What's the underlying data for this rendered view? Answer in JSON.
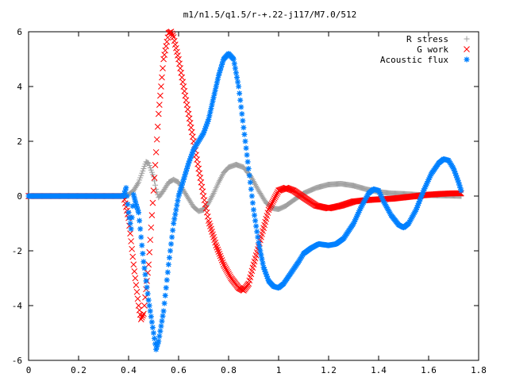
{
  "chart_data": {
    "type": "scatter",
    "title": "m1/n1.5/q1.5/r-+.22-j117/M7.0/512",
    "xlabel": "",
    "ylabel": "",
    "xlim": [
      0,
      1.8
    ],
    "ylim": [
      -6,
      6
    ],
    "x_ticks": [
      "0",
      "0.2",
      "0.4",
      "0.6",
      "0.8",
      "1",
      "1.2",
      "1.4",
      "1.6",
      "1.8"
    ],
    "y_ticks": [
      "-6",
      "-4",
      "-2",
      "0",
      "2",
      "4",
      "6"
    ],
    "grid": false,
    "legend_position": "top-right",
    "series": [
      {
        "name": "R stress",
        "marker": "+",
        "color": "#a0a0a0",
        "points": [
          [
            0,
            0
          ],
          [
            0.38,
            0
          ],
          [
            0.4,
            0.05
          ],
          [
            0.42,
            0.2
          ],
          [
            0.44,
            0.5
          ],
          [
            0.46,
            1.0
          ],
          [
            0.47,
            1.25
          ],
          [
            0.48,
            1.2
          ],
          [
            0.5,
            0.7
          ],
          [
            0.51,
            0.25
          ],
          [
            0.52,
            -0.05
          ],
          [
            0.54,
            0.2
          ],
          [
            0.56,
            0.5
          ],
          [
            0.58,
            0.6
          ],
          [
            0.6,
            0.5
          ],
          [
            0.62,
            0.2
          ],
          [
            0.64,
            -0.1
          ],
          [
            0.66,
            -0.4
          ],
          [
            0.68,
            -0.55
          ],
          [
            0.7,
            -0.5
          ],
          [
            0.72,
            -0.25
          ],
          [
            0.74,
            0.1
          ],
          [
            0.76,
            0.5
          ],
          [
            0.78,
            0.85
          ],
          [
            0.8,
            1.05
          ],
          [
            0.83,
            1.15
          ],
          [
            0.86,
            1.05
          ],
          [
            0.89,
            0.7
          ],
          [
            0.92,
            0.2
          ],
          [
            0.95,
            -0.25
          ],
          [
            0.98,
            -0.45
          ],
          [
            1.0,
            -0.48
          ],
          [
            1.03,
            -0.35
          ],
          [
            1.06,
            -0.15
          ],
          [
            1.1,
            0.1
          ],
          [
            1.15,
            0.3
          ],
          [
            1.2,
            0.42
          ],
          [
            1.25,
            0.45
          ],
          [
            1.3,
            0.38
          ],
          [
            1.35,
            0.25
          ],
          [
            1.4,
            0.15
          ],
          [
            1.45,
            0.1
          ],
          [
            1.5,
            0.08
          ],
          [
            1.55,
            0.05
          ],
          [
            1.6,
            0.03
          ],
          [
            1.65,
            0.02
          ],
          [
            1.7,
            0.01
          ],
          [
            1.73,
            0.0
          ]
        ]
      },
      {
        "name": "G work",
        "marker": "x",
        "color": "#ff0000",
        "points": [
          [
            0,
            0
          ],
          [
            0.38,
            0
          ],
          [
            0.4,
            -0.8
          ],
          [
            0.42,
            -2.5
          ],
          [
            0.44,
            -4.0
          ],
          [
            0.45,
            -4.5
          ],
          [
            0.46,
            -4.3
          ],
          [
            0.48,
            -2.5
          ],
          [
            0.5,
            0.2
          ],
          [
            0.52,
            3.0
          ],
          [
            0.54,
            5.0
          ],
          [
            0.56,
            5.95
          ],
          [
            0.57,
            6.0
          ],
          [
            0.58,
            5.8
          ],
          [
            0.6,
            5.0
          ],
          [
            0.62,
            4.0
          ],
          [
            0.64,
            3.0
          ],
          [
            0.66,
            2.0
          ],
          [
            0.68,
            1.0
          ],
          [
            0.7,
            0.0
          ],
          [
            0.72,
            -0.9
          ],
          [
            0.75,
            -1.8
          ],
          [
            0.78,
            -2.5
          ],
          [
            0.81,
            -3.0
          ],
          [
            0.84,
            -3.35
          ],
          [
            0.86,
            -3.45
          ],
          [
            0.88,
            -3.2
          ],
          [
            0.9,
            -2.5
          ],
          [
            0.93,
            -1.5
          ],
          [
            0.96,
            -0.5
          ],
          [
            1.0,
            0.2
          ],
          [
            1.03,
            0.3
          ],
          [
            1.06,
            0.2
          ],
          [
            1.1,
            -0.05
          ],
          [
            1.15,
            -0.35
          ],
          [
            1.2,
            -0.45
          ],
          [
            1.25,
            -0.35
          ],
          [
            1.3,
            -0.2
          ],
          [
            1.35,
            -0.15
          ],
          [
            1.4,
            -0.12
          ],
          [
            1.45,
            -0.1
          ],
          [
            1.5,
            -0.05
          ],
          [
            1.55,
            0.0
          ],
          [
            1.6,
            0.05
          ],
          [
            1.65,
            0.08
          ],
          [
            1.7,
            0.1
          ],
          [
            1.73,
            0.1
          ]
        ]
      },
      {
        "name": "Acoustic flux",
        "marker": "*",
        "color": "#0080ff",
        "points": [
          [
            0,
            0
          ],
          [
            0.38,
            0
          ],
          [
            0.39,
            0.3
          ],
          [
            0.4,
            -0.6
          ],
          [
            0.41,
            -1.2
          ],
          [
            0.42,
            0.05
          ],
          [
            0.43,
            -0.3
          ],
          [
            0.44,
            -0.6
          ],
          [
            0.45,
            -1.5
          ],
          [
            0.46,
            -2.4
          ],
          [
            0.48,
            -3.8
          ],
          [
            0.5,
            -5.0
          ],
          [
            0.51,
            -5.6
          ],
          [
            0.52,
            -5.3
          ],
          [
            0.54,
            -4.2
          ],
          [
            0.56,
            -2.5
          ],
          [
            0.58,
            -1.0
          ],
          [
            0.6,
            0.0
          ],
          [
            0.62,
            0.6
          ],
          [
            0.64,
            1.2
          ],
          [
            0.66,
            1.7
          ],
          [
            0.68,
            2.0
          ],
          [
            0.7,
            2.3
          ],
          [
            0.72,
            2.8
          ],
          [
            0.74,
            3.6
          ],
          [
            0.76,
            4.4
          ],
          [
            0.78,
            5.0
          ],
          [
            0.8,
            5.2
          ],
          [
            0.82,
            5.0
          ],
          [
            0.84,
            4.0
          ],
          [
            0.86,
            2.5
          ],
          [
            0.88,
            1.0
          ],
          [
            0.9,
            -0.5
          ],
          [
            0.92,
            -1.7
          ],
          [
            0.94,
            -2.6
          ],
          [
            0.96,
            -3.1
          ],
          [
            0.98,
            -3.3
          ],
          [
            1.0,
            -3.35
          ],
          [
            1.02,
            -3.2
          ],
          [
            1.05,
            -2.8
          ],
          [
            1.08,
            -2.4
          ],
          [
            1.1,
            -2.1
          ],
          [
            1.13,
            -1.9
          ],
          [
            1.16,
            -1.75
          ],
          [
            1.2,
            -1.8
          ],
          [
            1.23,
            -1.75
          ],
          [
            1.26,
            -1.55
          ],
          [
            1.3,
            -1.0
          ],
          [
            1.33,
            -0.4
          ],
          [
            1.36,
            0.1
          ],
          [
            1.38,
            0.25
          ],
          [
            1.4,
            0.2
          ],
          [
            1.42,
            -0.2
          ],
          [
            1.45,
            -0.7
          ],
          [
            1.48,
            -1.05
          ],
          [
            1.5,
            -1.15
          ],
          [
            1.52,
            -1.0
          ],
          [
            1.55,
            -0.5
          ],
          [
            1.58,
            0.2
          ],
          [
            1.61,
            0.8
          ],
          [
            1.64,
            1.2
          ],
          [
            1.66,
            1.35
          ],
          [
            1.68,
            1.3
          ],
          [
            1.7,
            1.0
          ],
          [
            1.72,
            0.5
          ],
          [
            1.73,
            0.2
          ]
        ]
      }
    ]
  }
}
